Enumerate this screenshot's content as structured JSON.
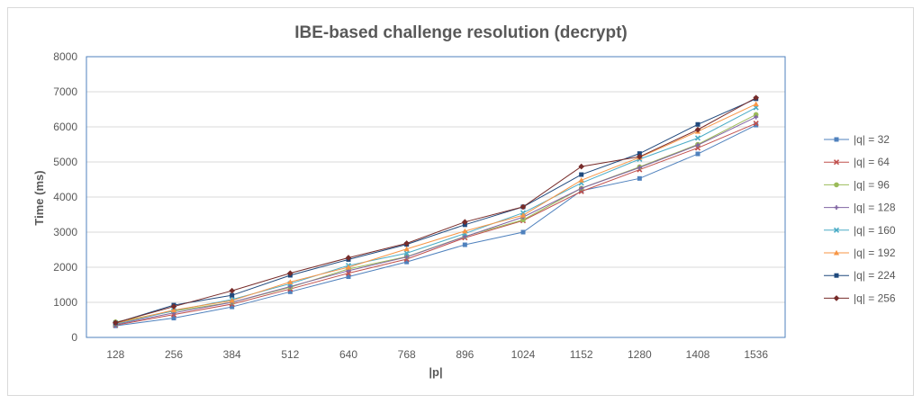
{
  "chart_data": {
    "type": "line",
    "title": "IBE-based challenge resolution (decrypt)",
    "xlabel": "|p|",
    "ylabel": "Time (ms)",
    "ylim": [
      0,
      8000
    ],
    "yticks": [
      0,
      1000,
      2000,
      3000,
      4000,
      5000,
      6000,
      7000,
      8000
    ],
    "grid": true,
    "legend": "right",
    "categories": [
      "128",
      "256",
      "384",
      "512",
      "640",
      "768",
      "896",
      "1024",
      "1152",
      "1280",
      "1408",
      "1536"
    ],
    "series": [
      {
        "name": "|q| = 32",
        "color": "#4f81bd",
        "marker": "square",
        "values": [
          330,
          550,
          870,
          1300,
          1730,
          2150,
          2640,
          3000,
          4180,
          4530,
          5230,
          6050
        ]
      },
      {
        "name": "|q| = 64",
        "color": "#c0504d",
        "marker": "x",
        "values": [
          350,
          650,
          950,
          1380,
          1830,
          2230,
          2840,
          3330,
          4160,
          4780,
          5400,
          6100
        ]
      },
      {
        "name": "|q| = 96",
        "color": "#9bbb59",
        "marker": "circle",
        "values": [
          440,
          750,
          1000,
          1430,
          1950,
          2300,
          2880,
          3350,
          4250,
          4860,
          5500,
          6350
        ]
      },
      {
        "name": "|q| = 128",
        "color": "#8064a2",
        "marker": "plus",
        "values": [
          370,
          700,
          1000,
          1450,
          1900,
          2290,
          2870,
          3430,
          4250,
          4840,
          5480,
          6280
        ]
      },
      {
        "name": "|q| = 160",
        "color": "#4bacc6",
        "marker": "x",
        "values": [
          380,
          760,
          1080,
          1530,
          2050,
          2400,
          2960,
          3550,
          4400,
          5080,
          5680,
          6550
        ]
      },
      {
        "name": "|q| = 192",
        "color": "#f79646",
        "marker": "triangle",
        "values": [
          400,
          780,
          1050,
          1580,
          2000,
          2520,
          3030,
          3480,
          4480,
          5130,
          5870,
          6650
        ]
      },
      {
        "name": "|q| = 224",
        "color": "#1f497d",
        "marker": "square",
        "values": [
          410,
          920,
          1200,
          1770,
          2220,
          2650,
          3210,
          3720,
          4640,
          5240,
          6070,
          6800
        ]
      },
      {
        "name": "|q| = 256",
        "color": "#772c2a",
        "marker": "diamond",
        "values": [
          420,
          880,
          1330,
          1830,
          2270,
          2680,
          3290,
          3720,
          4870,
          5150,
          5920,
          6830
        ]
      }
    ]
  }
}
